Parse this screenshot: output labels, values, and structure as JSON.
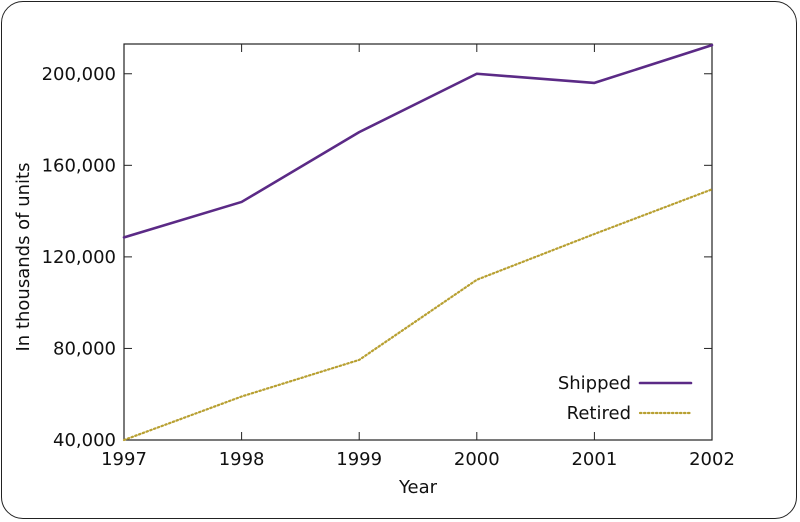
{
  "chart_data": {
    "type": "line",
    "title": "",
    "xlabel": "Year",
    "ylabel": "In thousands of units",
    "x": [
      1997,
      1998,
      1999,
      2000,
      2001,
      2002
    ],
    "x_tick_labels": [
      "1997",
      "1998",
      "1999",
      "2000",
      "2001",
      "2002"
    ],
    "y_ticks": [
      40000,
      80000,
      120000,
      160000,
      200000
    ],
    "y_tick_labels": [
      "40,000",
      "80,000",
      "120,000",
      "160,000",
      "200,000"
    ],
    "xlim": [
      1997,
      2002
    ],
    "ylim": [
      40000,
      213000
    ],
    "grid": false,
    "legend_placement": "bottom-right",
    "series": [
      {
        "name": "Shipped",
        "values": [
          128500,
          144000,
          174500,
          200000,
          196000,
          212500
        ],
        "color": "#5b2a86",
        "style": "solid"
      },
      {
        "name": "Retired",
        "values": [
          40000,
          59000,
          75000,
          110000,
          130000,
          149500
        ],
        "color": "#b8a032",
        "style": "dotted"
      }
    ]
  }
}
